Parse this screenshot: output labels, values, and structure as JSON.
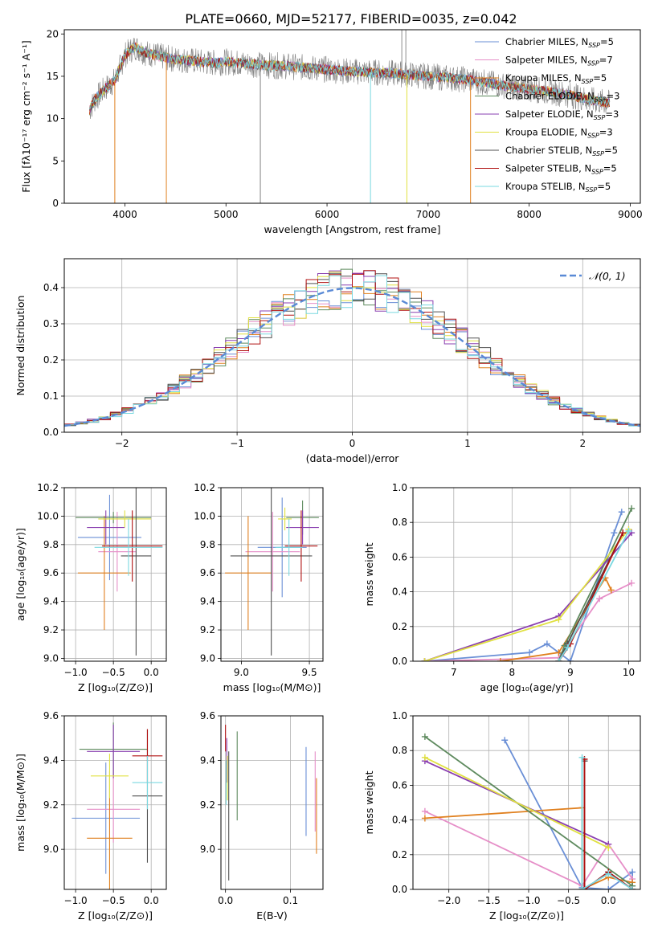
{
  "figure_title": "PLATE=0660, MJD=52177, FIBERID=0035, z=0.042",
  "colors": [
    "#6a8fd6",
    "#e68fc8",
    "#e0801f",
    "#5e8a5e",
    "#8a3fb0",
    "#e0e040",
    "#505050",
    "#b01010",
    "#7ad8e0"
  ],
  "legend_models": [
    {
      "label": "Chabrier MILES, N",
      "sub": "SSP",
      "tail": "=5"
    },
    {
      "label": "Salpeter MILES, N",
      "sub": "SSP",
      "tail": "=7"
    },
    {
      "label": "Kroupa MILES, N",
      "sub": "SSP",
      "tail": "=5"
    },
    {
      "label": "Chabrier ELODIE, N",
      "sub": "SSP",
      "tail": "=3"
    },
    {
      "label": "Salpeter ELODIE, N",
      "sub": "SSP",
      "tail": "=3"
    },
    {
      "label": "Kroupa ELODIE, N",
      "sub": "SSP",
      "tail": "=3"
    },
    {
      "label": "Chabrier STELIB, N",
      "sub": "SSP",
      "tail": "=5"
    },
    {
      "label": "Salpeter STELIB, N",
      "sub": "SSP",
      "tail": "=5"
    },
    {
      "label": "Kroupa STELIB, N",
      "sub": "SSP",
      "tail": "=5"
    }
  ],
  "chart_data": [
    {
      "id": "spectrum",
      "type": "line",
      "xlabel": "wavelength [Angstrom, rest frame]",
      "ylabel": "Flux [fλ10⁻¹⁷ erg cm⁻² s⁻¹ A⁻¹]",
      "xlim": [
        3400,
        9100
      ],
      "ylim": [
        0,
        20.5
      ],
      "xticks": [
        4000,
        5000,
        6000,
        7000,
        8000,
        9000
      ],
      "yticks": [
        0,
        5,
        10,
        15,
        20
      ],
      "grid": false,
      "legend": "right",
      "x": [
        3650,
        3700,
        3800,
        3900,
        4000,
        4100,
        4200,
        4300,
        4400,
        4500,
        4600,
        4700,
        4800,
        4900,
        5000,
        5200,
        5400,
        5600,
        5800,
        6000,
        6200,
        6400,
        6600,
        6800,
        7000,
        7200,
        7400,
        7600,
        7800,
        8000,
        8200,
        8400,
        8600,
        8800
      ],
      "y": [
        11,
        12.2,
        13.5,
        14.5,
        17.5,
        18.5,
        17.8,
        17.5,
        17.2,
        17,
        16.9,
        16.8,
        16.6,
        16.6,
        16.7,
        16.5,
        16.3,
        16.2,
        16,
        15.8,
        15.6,
        15.5,
        15.4,
        15.2,
        15,
        14.8,
        14.6,
        14.2,
        13.8,
        13.5,
        13.2,
        12.8,
        12.2,
        11.8
      ]
    },
    {
      "id": "residuals",
      "type": "line",
      "xlabel": "(data-model)/error",
      "ylabel": "Normed distribution",
      "xlim": [
        -2.5,
        2.5
      ],
      "ylim": [
        0,
        0.48
      ],
      "xticks": [
        -2,
        -1,
        0,
        1,
        2
      ],
      "yticks": [
        0.0,
        0.1,
        0.2,
        0.3,
        0.4
      ],
      "grid": true,
      "legend": "top-right",
      "legend_label": "𝒩(0, 1)",
      "normal": {
        "mu": 0,
        "sigma": 1
      }
    },
    {
      "id": "age-vs-Z",
      "type": "scatter",
      "xlabel": "Z [log₁₀(Z/Z⊙)]",
      "ylabel": "age  [log₁₀(age/yr)]",
      "xlim": [
        -1.15,
        0.2
      ],
      "ylim": [
        8.98,
        10.2
      ],
      "xticks": [
        -1.0,
        -0.5,
        0.0
      ],
      "yticks": [
        9.0,
        9.2,
        9.4,
        9.6,
        9.8,
        10.0,
        10.2
      ],
      "grid": true,
      "points": [
        {
          "x": -0.55,
          "y": 9.85,
          "xerr": 0.42,
          "yerr": 0.3
        },
        {
          "x": -0.45,
          "y": 9.75,
          "xerr": 0.25,
          "yerr": 0.28
        },
        {
          "x": -0.62,
          "y": 9.6,
          "xerr": 0.35,
          "yerr": 0.4
        },
        {
          "x": -0.5,
          "y": 9.99,
          "xerr": 0.5,
          "yerr": 0.04
        },
        {
          "x": -0.6,
          "y": 9.92,
          "xerr": 0.25,
          "yerr": 0.12
        },
        {
          "x": -0.35,
          "y": 9.98,
          "xerr": 0.35,
          "yerr": 0.06
        },
        {
          "x": -0.2,
          "y": 9.72,
          "xerr": 0.2,
          "yerr": 0.7
        },
        {
          "x": -0.25,
          "y": 9.79,
          "xerr": 0.4,
          "yerr": 0.25
        },
        {
          "x": -0.3,
          "y": 9.78,
          "xerr": 0.45,
          "yerr": 0.2
        }
      ]
    },
    {
      "id": "age-vs-mass",
      "type": "scatter",
      "xlabel": "mass [log₁₀(M/M⊙)]",
      "ylabel": "",
      "xlim": [
        8.85,
        9.6
      ],
      "ylim": [
        8.98,
        10.2
      ],
      "xticks": [
        9.0,
        9.5
      ],
      "yticks": [
        9.0,
        9.2,
        9.4,
        9.6,
        9.8,
        10.0,
        10.2
      ],
      "grid": true,
      "points": [
        {
          "x": 9.3,
          "y": 9.78,
          "xerr": 0.18,
          "yerr": 0.35
        },
        {
          "x": 9.23,
          "y": 9.75,
          "xerr": 0.2,
          "yerr": 0.28
        },
        {
          "x": 9.05,
          "y": 9.6,
          "xerr": 0.17,
          "yerr": 0.4
        },
        {
          "x": 9.45,
          "y": 9.99,
          "xerr": 0.12,
          "yerr": 0.12
        },
        {
          "x": 9.45,
          "y": 9.92,
          "xerr": 0.12,
          "yerr": 0.12
        },
        {
          "x": 9.32,
          "y": 9.98,
          "xerr": 0.05,
          "yerr": 0.08
        },
        {
          "x": 9.22,
          "y": 9.72,
          "xerr": 0.3,
          "yerr": 0.7
        },
        {
          "x": 9.44,
          "y": 9.79,
          "xerr": 0.12,
          "yerr": 0.25
        },
        {
          "x": 9.35,
          "y": 9.78,
          "xerr": 0.1,
          "yerr": 0.2
        }
      ]
    },
    {
      "id": "massweight-vs-age",
      "type": "line",
      "xlabel": "age  [log₁₀(age/yr)]",
      "ylabel": "mass weight",
      "xlim": [
        6.3,
        10.2
      ],
      "ylim": [
        0,
        1.0
      ],
      "xticks": [
        7,
        8,
        9,
        10
      ],
      "yticks": [
        0.0,
        0.2,
        0.4,
        0.6,
        0.8,
        1.0
      ],
      "grid": true,
      "series": [
        {
          "x": [
            6.5,
            8.3,
            8.6,
            9.0,
            9.75,
            9.88
          ],
          "y": [
            0,
            0.05,
            0.1,
            0.0,
            0.74,
            0.86
          ]
        },
        {
          "x": [
            6.5,
            8.8,
            9.5,
            10.05
          ],
          "y": [
            0,
            0.02,
            0.36,
            0.45
          ]
        },
        {
          "x": [
            7.8,
            8.8,
            9.6,
            9.7
          ],
          "y": [
            0,
            0.05,
            0.48,
            0.41
          ]
        },
        {
          "x": [
            8.8,
            8.9,
            10.05
          ],
          "y": [
            0,
            0.09,
            0.88
          ]
        },
        {
          "x": [
            6.5,
            8.8,
            10.05
          ],
          "y": [
            0,
            0.26,
            0.74
          ]
        },
        {
          "x": [
            6.5,
            8.8,
            10.0
          ],
          "y": [
            0,
            0.24,
            0.76
          ]
        },
        {
          "x": [
            8.8,
            8.95,
            9.9
          ],
          "y": [
            0,
            0.1,
            0.74
          ]
        },
        {
          "x": [
            8.8,
            9.0,
            9.9
          ],
          "y": [
            0,
            0.1,
            0.74
          ]
        },
        {
          "x": [
            8.8,
            8.95,
            10.0
          ],
          "y": [
            0,
            0.08,
            0.75
          ]
        }
      ]
    },
    {
      "id": "mass-vs-Z",
      "type": "scatter",
      "xlabel": "Z [log₁₀(Z/Z⊙)]",
      "ylabel": "mass [log₁₀(M/M⊙)]",
      "xlim": [
        -1.15,
        0.2
      ],
      "ylim": [
        8.82,
        9.6
      ],
      "xticks": [
        -1.0,
        -0.5,
        0.0
      ],
      "yticks": [
        9.0,
        9.2,
        9.4,
        9.6
      ],
      "grid": true,
      "points": [
        {
          "x": -0.6,
          "y": 9.14,
          "xerr": 0.45,
          "yerr": 0.25
        },
        {
          "x": -0.5,
          "y": 9.18,
          "xerr": 0.35,
          "yerr": 0.15
        },
        {
          "x": -0.55,
          "y": 9.05,
          "xerr": 0.3,
          "yerr": 0.3
        },
        {
          "x": -0.5,
          "y": 9.45,
          "xerr": 0.45,
          "yerr": 0.12
        },
        {
          "x": -0.5,
          "y": 9.44,
          "xerr": 0.35,
          "yerr": 0.12
        },
        {
          "x": -0.55,
          "y": 9.33,
          "xerr": 0.25,
          "yerr": 0.1
        },
        {
          "x": -0.05,
          "y": 9.24,
          "xerr": 0.2,
          "yerr": 0.3
        },
        {
          "x": -0.05,
          "y": 9.42,
          "xerr": 0.2,
          "yerr": 0.12
        },
        {
          "x": -0.05,
          "y": 9.3,
          "xerr": 0.2,
          "yerr": 0.12
        }
      ]
    },
    {
      "id": "mass-vs-EBV",
      "type": "scatter",
      "xlabel": "E(B-V)",
      "ylabel": "",
      "xlim": [
        -0.007,
        0.15
      ],
      "ylim": [
        8.82,
        9.6
      ],
      "xticks": [
        0.0,
        0.1
      ],
      "yticks": [
        9.0,
        9.2,
        9.4,
        9.6
      ],
      "grid": true,
      "points": [
        {
          "x": 0.124,
          "y": 9.26,
          "xerr": 0,
          "yerr": 0.2
        },
        {
          "x": 0.138,
          "y": 9.26,
          "xerr": 0,
          "yerr": 0.18
        },
        {
          "x": 0.14,
          "y": 9.15,
          "xerr": 0,
          "yerr": 0.17
        },
        {
          "x": 0.018,
          "y": 9.33,
          "xerr": 0,
          "yerr": 0.2
        },
        {
          "x": 0.002,
          "y": 9.4,
          "xerr": 0,
          "yerr": 0.1
        },
        {
          "x": 0.003,
          "y": 9.32,
          "xerr": 0,
          "yerr": 0.1
        },
        {
          "x": 0.005,
          "y": 9.15,
          "xerr": 0,
          "yerr": 0.29
        },
        {
          "x": 0.0,
          "y": 9.5,
          "xerr": 0,
          "yerr": 0.06
        },
        {
          "x": 0.001,
          "y": 9.3,
          "xerr": 0,
          "yerr": 0.1
        }
      ]
    },
    {
      "id": "massweight-vs-Z",
      "type": "line",
      "xlabel": "Z [log₁₀(Z/Z⊙)]",
      "ylabel": "mass weight",
      "xlim": [
        -2.45,
        0.4
      ],
      "ylim": [
        0,
        1.0
      ],
      "xticks": [
        -2.0,
        -1.5,
        -1.0,
        -0.5,
        0.0
      ],
      "yticks": [
        0.0,
        0.2,
        0.4,
        0.6,
        0.8,
        1.0
      ],
      "grid": true,
      "series": [
        {
          "x": [
            -1.3,
            -0.33,
            0.0,
            0.3,
            0.3
          ],
          "y": [
            0.86,
            0.01,
            0.0,
            0.1,
            0.02
          ]
        },
        {
          "x": [
            -2.3,
            -0.33,
            0.0,
            0.3
          ],
          "y": [
            0.45,
            0.02,
            0.26,
            0.06
          ]
        },
        {
          "x": [
            -2.3,
            -0.33,
            -0.33,
            0.0,
            0.3
          ],
          "y": [
            0.41,
            0.47,
            0.0,
            0.07,
            0.04
          ]
        },
        {
          "x": [
            -2.3,
            0.3
          ],
          "y": [
            0.88,
            0.02
          ]
        },
        {
          "x": [
            -2.3,
            0.0
          ],
          "y": [
            0.74,
            0.26
          ]
        },
        {
          "x": [
            -2.3,
            0.0
          ],
          "y": [
            0.76,
            0.24
          ]
        },
        {
          "x": [
            -0.3,
            -0.3,
            0.0,
            0.3
          ],
          "y": [
            0.74,
            0.0,
            0.1,
            0.0
          ]
        },
        {
          "x": [
            -0.3,
            -0.3,
            0.0,
            0.3
          ],
          "y": [
            0.75,
            0.0,
            0.1,
            0.0
          ]
        },
        {
          "x": [
            -0.33,
            -0.33,
            0.0,
            0.3
          ],
          "y": [
            0.76,
            0.0,
            0.09,
            0.0
          ]
        }
      ]
    }
  ]
}
